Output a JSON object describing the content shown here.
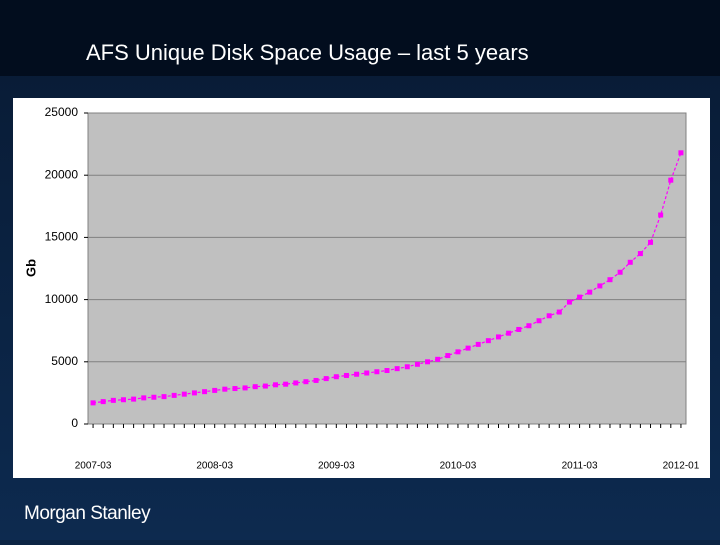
{
  "brand": "Morgan Stanley",
  "chart_data": {
    "type": "line",
    "title": "AFS Unique Disk Space Usage – last 5 years",
    "y_label": "Gb",
    "categories": [
      "2007-03",
      null,
      null,
      null,
      null,
      null,
      null,
      null,
      null,
      null,
      null,
      null,
      "2008-03",
      null,
      null,
      null,
      null,
      null,
      null,
      null,
      null,
      null,
      null,
      null,
      "2009-03",
      null,
      null,
      null,
      null,
      null,
      null,
      null,
      null,
      null,
      null,
      null,
      "2010-03",
      null,
      null,
      null,
      null,
      null,
      null,
      null,
      null,
      null,
      null,
      null,
      "2011-03",
      null,
      null,
      null,
      null,
      null,
      null,
      null,
      null,
      null,
      "2012-01"
    ],
    "series": [
      {
        "name": "Gb",
        "color": "#ff00ff",
        "values": [
          1700,
          1800,
          1900,
          1950,
          2000,
          2100,
          2150,
          2200,
          2300,
          2400,
          2500,
          2600,
          2700,
          2800,
          2850,
          2900,
          3000,
          3050,
          3150,
          3200,
          3300,
          3400,
          3500,
          3650,
          3800,
          3900,
          4000,
          4100,
          4200,
          4300,
          4450,
          4600,
          4800,
          5000,
          5200,
          5500,
          5800,
          6100,
          6400,
          6700,
          7000,
          7300,
          7600,
          7900,
          8300,
          8700,
          9000,
          9800,
          10200,
          10600,
          11100,
          11600,
          12200,
          13000,
          13700,
          14600,
          16800,
          19600,
          21800
        ]
      }
    ],
    "ylim": [
      0,
      25000
    ],
    "yticks": [
      0,
      5000,
      10000,
      15000,
      20000,
      25000
    ],
    "grid": true
  }
}
